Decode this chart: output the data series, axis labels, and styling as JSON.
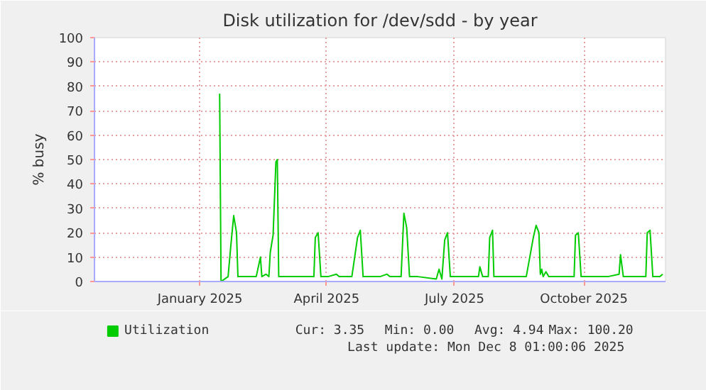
{
  "chart_data": {
    "type": "line",
    "title": "Disk utilization for /dev/sdd - by year",
    "ylabel": "% busy",
    "x": [
      "2025-01-15",
      "2025-01-16",
      "2025-01-21",
      "2025-01-23",
      "2025-01-25",
      "2025-01-27",
      "2025-01-28",
      "2025-01-31",
      "2025-02-10",
      "2025-02-13",
      "2025-02-14",
      "2025-02-17",
      "2025-02-19",
      "2025-02-20",
      "2025-02-22",
      "2025-02-24",
      "2025-02-25",
      "2025-02-26",
      "2025-03-03",
      "2025-03-16",
      "2025-03-23",
      "2025-03-24",
      "2025-03-26",
      "2025-03-28",
      "2025-04-02",
      "2025-04-08",
      "2025-04-10",
      "2025-04-19",
      "2025-04-23",
      "2025-04-25",
      "2025-04-27",
      "2025-05-09",
      "2025-05-14",
      "2025-05-16",
      "2025-05-24",
      "2025-05-26",
      "2025-05-28",
      "2025-05-30",
      "2025-06-05",
      "2025-06-18",
      "2025-06-20",
      "2025-06-22",
      "2025-06-24",
      "2025-06-26",
      "2025-06-28",
      "2025-07-09",
      "2025-07-18",
      "2025-07-19",
      "2025-07-21",
      "2025-07-25",
      "2025-07-26",
      "2025-07-28",
      "2025-07-29",
      "2025-08-11",
      "2025-08-21",
      "2025-08-26",
      "2025-08-28",
      "2025-08-30",
      "2025-08-31",
      "2025-09-01",
      "2025-09-02",
      "2025-09-04",
      "2025-09-06",
      "2025-09-14",
      "2025-09-24",
      "2025-09-25",
      "2025-09-27",
      "2025-09-29",
      "2025-10-18",
      "2025-10-26",
      "2025-10-27",
      "2025-10-29",
      "2025-11-07",
      "2025-11-14",
      "2025-11-15",
      "2025-11-17",
      "2025-11-19",
      "2025-11-24",
      "2025-11-26"
    ],
    "series": [
      {
        "name": "Utilization",
        "color": "#00cc00",
        "values": [
          77,
          0,
          2,
          15,
          27,
          20,
          2,
          2,
          2,
          10,
          2,
          3,
          2,
          12,
          19,
          49,
          50,
          2,
          2,
          2,
          2,
          18,
          20,
          2,
          2,
          3,
          2,
          2,
          18,
          21,
          2,
          2,
          3,
          2,
          2,
          28,
          22,
          2,
          2,
          1,
          5,
          1,
          17,
          20,
          2,
          2,
          2,
          6,
          2,
          2,
          18,
          21,
          2,
          2,
          2,
          18,
          23,
          20,
          3,
          5,
          2,
          4,
          2,
          2,
          2,
          19,
          20,
          2,
          2,
          3,
          11,
          2,
          2,
          2,
          20,
          21,
          2,
          2,
          3
        ]
      }
    ],
    "xlim": [
      "2024-10-18",
      "2025-11-28"
    ],
    "xticks": [
      {
        "value": "2025-01-01",
        "label": "January 2025"
      },
      {
        "value": "2025-04-01",
        "label": "April 2025"
      },
      {
        "value": "2025-07-01",
        "label": "July 2025"
      },
      {
        "value": "2025-10-01",
        "label": "October 2025"
      }
    ],
    "ylim": [
      0,
      100
    ],
    "yticks": [
      0,
      10,
      20,
      30,
      40,
      50,
      60,
      70,
      80,
      90,
      100
    ],
    "grid": true,
    "legend": "bottom",
    "marker": "none",
    "line_style": "solid",
    "annotations": [
      "Cur: 3.35",
      "Min: 0.00",
      "Avg: 4.94",
      "Max: 100.20",
      "Last update: Mon Dec  8 01:00:06 2025"
    ]
  }
}
